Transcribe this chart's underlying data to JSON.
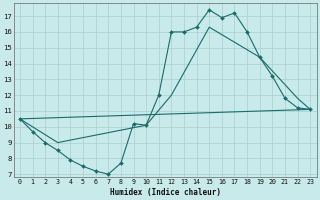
{
  "background_color": "#c8eaea",
  "grid_color": "#aacfcf",
  "line_color": "#1a6b6b",
  "xlabel": "Humidex (Indice chaleur)",
  "ylabel_ticks": [
    7,
    8,
    9,
    10,
    11,
    12,
    13,
    14,
    15,
    16,
    17
  ],
  "xlabel_ticks": [
    0,
    1,
    2,
    3,
    4,
    5,
    6,
    7,
    8,
    9,
    10,
    11,
    12,
    13,
    14,
    15,
    16,
    17,
    18,
    19,
    20,
    21,
    22,
    23
  ],
  "xlim": [
    -0.5,
    23.5
  ],
  "ylim": [
    6.8,
    17.8
  ],
  "line1_x": [
    0,
    1,
    2,
    3,
    4,
    5,
    6,
    7,
    8,
    9,
    10,
    11,
    12,
    13,
    14,
    15,
    16,
    17,
    18,
    19,
    20,
    21,
    22,
    23
  ],
  "line1_y": [
    10.5,
    9.7,
    9.0,
    8.5,
    7.9,
    7.5,
    7.2,
    7.0,
    7.7,
    10.2,
    10.1,
    12.0,
    16.0,
    16.0,
    16.3,
    17.4,
    16.9,
    17.2,
    16.0,
    14.4,
    13.2,
    11.8,
    11.2,
    11.1
  ],
  "line2_x": [
    0,
    23
  ],
  "line2_y": [
    10.5,
    11.1
  ],
  "line3_x": [
    0,
    3,
    10,
    12,
    15,
    19,
    22,
    23
  ],
  "line3_y": [
    10.5,
    9.0,
    10.1,
    12.0,
    16.3,
    14.4,
    11.8,
    11.1
  ]
}
